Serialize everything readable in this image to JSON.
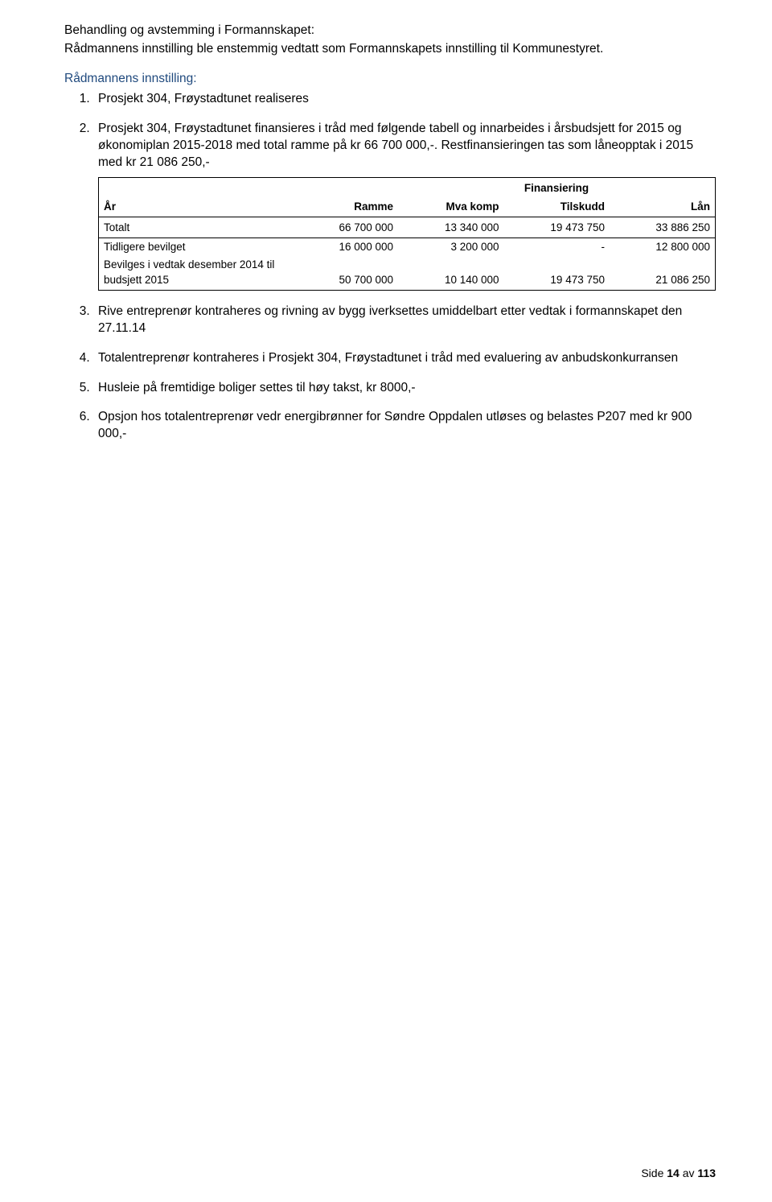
{
  "colors": {
    "text": "#000000",
    "link_blue": "#1f497d",
    "border": "#000000",
    "background": "#ffffff"
  },
  "header": {
    "line1": "Behandling og avstemming i Formannskapet:",
    "line2": "Rådmannens innstilling ble enstemmig vedtatt som Formannskapets innstilling til Kommunestyret."
  },
  "innstilling_label": "Rådmannens innstilling:",
  "items": {
    "1": "Prosjekt 304, Frøystadtunet realiseres",
    "2": "Prosjekt 304, Frøystadtunet finansieres i tråd med følgende tabell og innarbeides i årsbudsjett for 2015 og økonomiplan 2015-2018 med total ramme på kr 66 700 000,-. Restfinansieringen tas som låneopptak i 2015 med kr 21 086 250,-",
    "3": "Rive entreprenør kontraheres og rivning av bygg iverksettes umiddelbart etter vedtak i formannskapet den 27.11.14",
    "4": "Totalentreprenør kontraheres i Prosjekt 304, Frøystadtunet i tråd med evaluering av anbudskonkurransen",
    "5": "Husleie på fremtidige boliger settes til høy takst, kr 8000,-",
    "6": "Opsjon hos totalentreprenør vedr energibrønner for Søndre Oppdalen utløses og belastes P207 med kr 900 000,-"
  },
  "table": {
    "group_header": "Finansiering",
    "columns": {
      "year": "År",
      "ramme": "Ramme",
      "mva": "Mva komp",
      "tilskudd": "Tilskudd",
      "lan": "Lån"
    },
    "rows": [
      {
        "label": "Totalt",
        "ramme": "66 700 000",
        "mva": "13 340 000",
        "tilskudd": "19 473 750",
        "lan": "33 886 250"
      },
      {
        "label": "Tidligere bevilget",
        "ramme": "16 000 000",
        "mva": "3 200 000",
        "tilskudd": "-",
        "lan": "12 800 000"
      },
      {
        "label": "Bevilges i vedtak desember 2014 til budsjett 2015",
        "ramme": "50 700 000",
        "mva": "10 140 000",
        "tilskudd": "19 473 750",
        "lan": "21 086 250"
      }
    ],
    "font_size": 13.5,
    "border_color": "#000000"
  },
  "footer": {
    "prefix": "Side ",
    "page": "14",
    "of_word": " av ",
    "total": "113"
  }
}
